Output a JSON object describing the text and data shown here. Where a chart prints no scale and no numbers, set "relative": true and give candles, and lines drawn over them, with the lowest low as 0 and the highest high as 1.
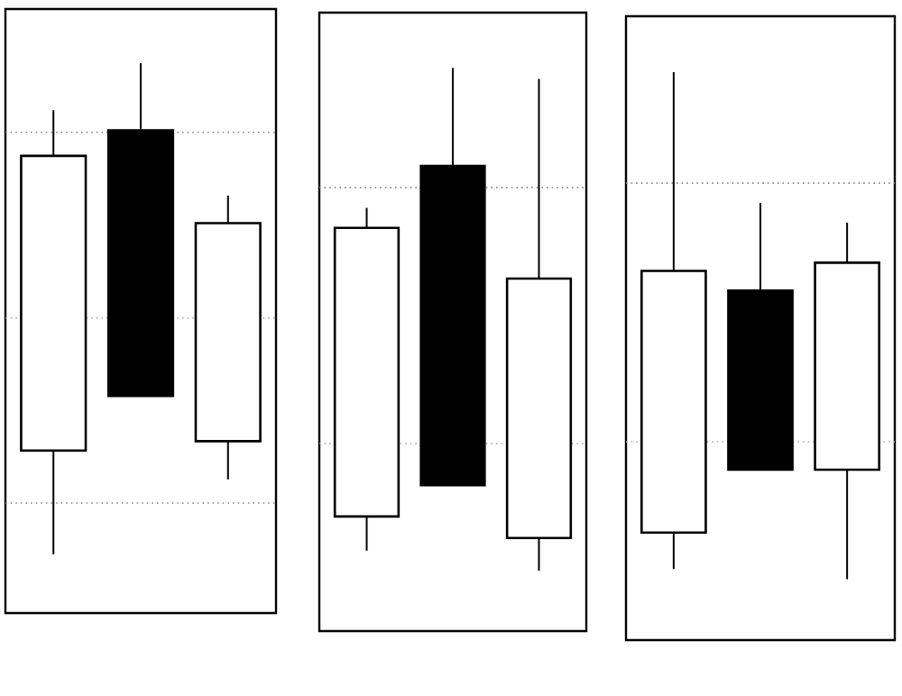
{
  "chart_data": [
    {
      "type": "candlestick",
      "relative": true,
      "categories": [
        null,
        null,
        null
      ],
      "ohlc": [
        [
          0.211,
          0.904,
          0,
          0.811
        ],
        [
          0.863,
          1,
          0.322,
          0.322
        ],
        [
          0.23,
          0.73,
          0.152,
          0.674
        ]
      ],
      "colors": [
        "#ffffff",
        "#000000",
        "#ffffff"
      ],
      "ref_lines": [
        {
          "axis": "y",
          "value": 0.859,
          "color": "#888888",
          "line_style": "dotted"
        },
        {
          "axis": "y",
          "value": 0.481,
          "color": "#aaaaaa",
          "line_style": "dotted"
        },
        {
          "axis": "y",
          "value": 0.104,
          "color": "#888888",
          "line_style": "dotted"
        }
      ]
    },
    {
      "type": "candlestick",
      "relative": true,
      "categories": [
        null,
        null,
        null
      ],
      "ohlc": [
        [
          0.108,
          0.722,
          0.04,
          0.682
        ],
        [
          0.805,
          1,
          0.17,
          0.17
        ],
        [
          0.065,
          0.978,
          0,
          0.581
        ]
      ],
      "colors": [
        "#ffffff",
        "#000000",
        "#ffffff"
      ],
      "ref_lines": [
        {
          "axis": "y",
          "value": 0.762,
          "color": "#888888",
          "line_style": "dotted"
        },
        {
          "axis": "y",
          "value": 0.253,
          "color": "#aaaaaa",
          "line_style": "dotted"
        }
      ]
    },
    {
      "type": "candlestick",
      "relative": true,
      "categories": [
        null,
        null,
        null
      ],
      "ohlc": [
        [
          0.092,
          1,
          0.02,
          0.608
        ],
        [
          0.569,
          0.742,
          0.216,
          0.216
        ],
        [
          0.216,
          0.703,
          0,
          0.624
        ]
      ],
      "colors": [
        "#ffffff",
        "#000000",
        "#ffffff"
      ],
      "ref_lines": [
        {
          "axis": "y",
          "value": 0.781,
          "color": "#888888",
          "line_style": "dotted"
        },
        {
          "axis": "y",
          "value": 0.271,
          "color": "#aaaaaa",
          "line_style": "dotted"
        }
      ]
    }
  ]
}
